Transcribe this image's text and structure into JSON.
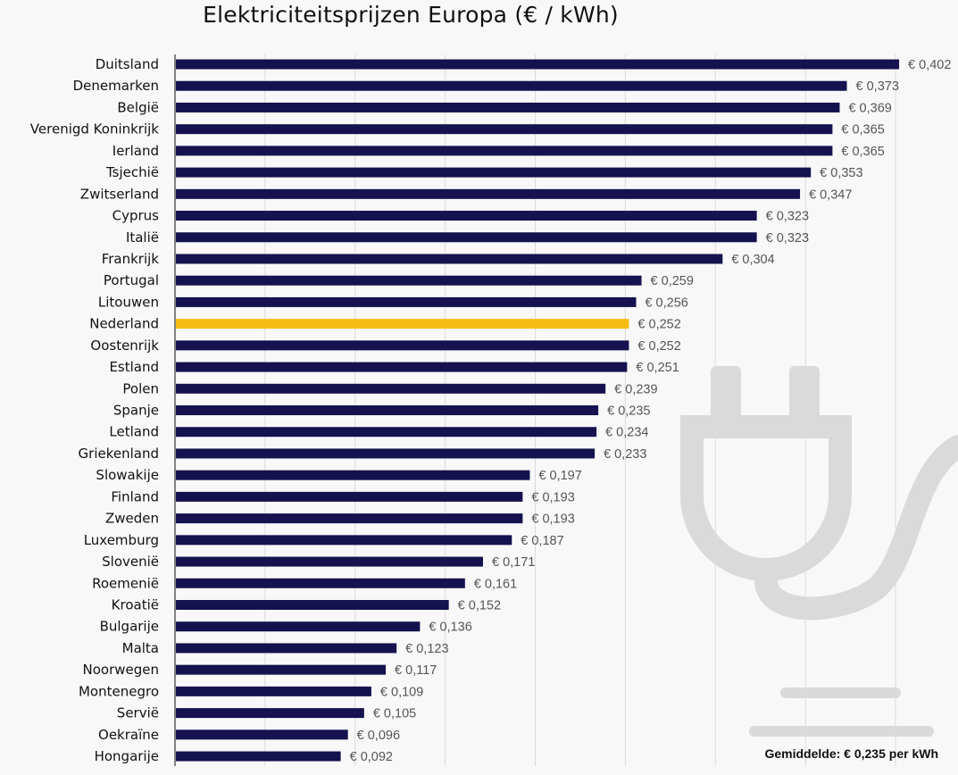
{
  "chart_data": {
    "type": "bar",
    "orientation": "horizontal",
    "title": "Elektriciteitsprijzen Europa (€ / kWh)",
    "value_prefix": "€ ",
    "xlim": [
      0,
      0.4
    ],
    "grid": true,
    "highlight": "Nederland",
    "colors": {
      "bar": "#15124f",
      "highlight": "#f7bb16",
      "grid": "#dcdcdc",
      "label": "#555555",
      "plug": "#dadada"
    },
    "categories": [
      "Duitsland",
      "Denemarken",
      "België",
      "Verenigd Koninkrijk",
      "Ierland",
      "Tsjechië",
      "Zwitserland",
      "Cyprus",
      "Italië",
      "Frankrijk",
      "Portugal",
      "Litouwen",
      "Nederland",
      "Oostenrijk",
      "Estland",
      "Polen",
      "Spanje",
      "Letland",
      "Griekenland",
      "Slowakije",
      "Finland",
      "Zweden",
      "Luxemburg",
      "Slovenië",
      "Roemenië",
      "Kroatië",
      "Bulgarije",
      "Malta",
      "Noorwegen",
      "Montenegro",
      "Servië",
      "Oekraïne",
      "Hongarije"
    ],
    "values": [
      0.402,
      0.373,
      0.369,
      0.365,
      0.365,
      0.353,
      0.347,
      0.323,
      0.323,
      0.304,
      0.259,
      0.256,
      0.252,
      0.252,
      0.251,
      0.239,
      0.235,
      0.234,
      0.233,
      0.197,
      0.193,
      0.193,
      0.187,
      0.171,
      0.161,
      0.152,
      0.136,
      0.123,
      0.117,
      0.109,
      0.105,
      0.096,
      0.092
    ],
    "value_labels": [
      "€ 0,402",
      "€ 0,373",
      "€ 0,369",
      "€ 0,365",
      "€ 0,365",
      "€ 0,353",
      "€ 0,347",
      "€ 0,323",
      "€ 0,323",
      "€ 0,304",
      "€ 0,259",
      "€ 0,256",
      "€ 0,252",
      "€ 0,252",
      "€ 0,251",
      "€ 0,239",
      "€ 0,235",
      "€ 0,234",
      "€ 0,233",
      "€ 0,197",
      "€ 0,193",
      "€ 0,193",
      "€ 0,187",
      "€ 0,171",
      "€ 0,161",
      "€ 0,152",
      "€ 0,136",
      "€ 0,123",
      "€ 0,117",
      "€ 0,109",
      "€ 0,105",
      "€ 0,096",
      "€ 0,092"
    ],
    "annotation": "Gemiddelde: € 0,235 per kWh",
    "icon": "electric-plug-icon"
  }
}
